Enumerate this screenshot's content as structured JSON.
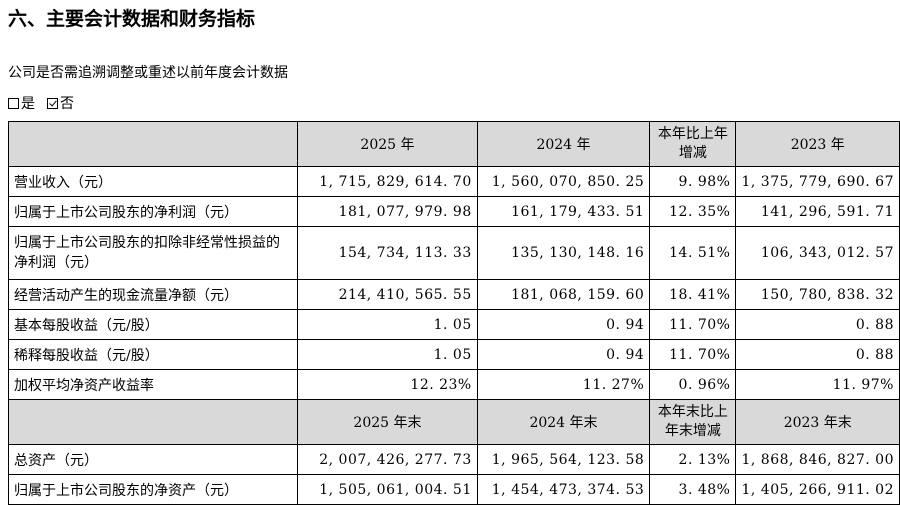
{
  "title": "六、主要会计数据和财务指标",
  "question": "公司是否需追溯调整或重述以前年度会计数据",
  "options": [
    {
      "label": "是",
      "checked": false
    },
    {
      "label": "否",
      "checked": true
    }
  ],
  "header1": [
    "",
    "2025 年",
    "2024 年",
    "本年比上年增减",
    "2023 年"
  ],
  "rows1": [
    [
      "营业收入（元）",
      "1, 715, 829, 614. 70",
      "1, 560, 070, 850. 25",
      "9. 98%",
      "1, 375, 779, 690. 67"
    ],
    [
      "归属于上市公司股东的净利润（元）",
      "181, 077, 979. 98",
      "161, 179, 433. 51",
      "12. 35%",
      "141, 296, 591. 71"
    ],
    [
      "归属于上市公司股东的扣除非经常性损益的净利润（元）",
      "154, 734, 113. 33",
      "135, 130, 148. 16",
      "14. 51%",
      "106, 343, 012. 57"
    ],
    [
      "经营活动产生的现金流量净额（元）",
      "214, 410, 565. 55",
      "181, 068, 159. 60",
      "18. 41%",
      "150, 780, 838. 32"
    ],
    [
      "基本每股收益（元/股）",
      "1. 05",
      "0. 94",
      "11. 70%",
      "0. 88"
    ],
    [
      "稀释每股收益（元/股）",
      "1. 05",
      "0. 94",
      "11. 70%",
      "0. 88"
    ],
    [
      "加权平均净资产收益率",
      "12. 23%",
      "11. 27%",
      "0. 96%",
      "11. 97%"
    ]
  ],
  "header2": [
    "",
    "2025 年末",
    "2024 年末",
    "本年末比上年末增减",
    "2023 年末"
  ],
  "rows2": [
    [
      "总资产（元）",
      "2, 007, 426, 277. 73",
      "1, 965, 564, 123. 58",
      "2. 13%",
      "1, 868, 846, 827. 00"
    ],
    [
      "归属于上市公司股东的净资产（元）",
      "1, 505, 061, 004. 51",
      "1, 454, 473, 374. 53",
      "3. 48%",
      "1, 405, 266, 911. 02"
    ]
  ]
}
